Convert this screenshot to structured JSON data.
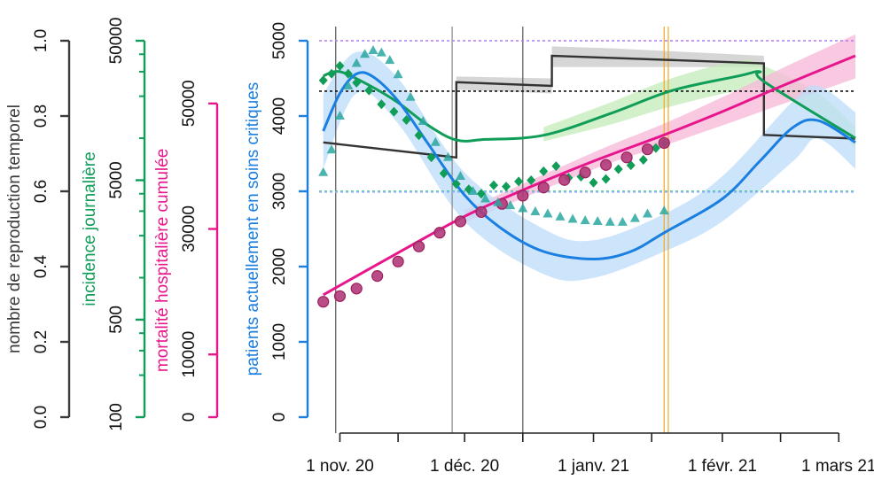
{
  "chart_data": {
    "type": "line",
    "x_ticks": [
      "1 nov. 20",
      "1 déc. 20",
      "1 janv. 21",
      "1 févr. 21",
      "1 mars 21"
    ],
    "x_range": [
      "2020-10-27",
      "2021-03-05"
    ],
    "axes": [
      {
        "key": "r",
        "label": "nombre de reproduction temporel",
        "color": "#3a3a3a",
        "scale": "linear",
        "range": [
          0,
          1.0
        ],
        "ticks": [
          "0.0",
          "0.2",
          "0.4",
          "0.6",
          "0.8",
          "1.0"
        ]
      },
      {
        "key": "inc",
        "label": "incidence journalière",
        "color": "#0f9d58",
        "scale": "log",
        "range": [
          100,
          50000
        ],
        "ticks": [
          "100",
          "500",
          "5000",
          "50000"
        ]
      },
      {
        "key": "mort",
        "label": "mortalité hospitalière cumulée",
        "color": "#e8168c",
        "scale": "linear",
        "range": [
          0,
          60000
        ],
        "ticks": [
          "0",
          "10000",
          "30000",
          "50000"
        ]
      },
      {
        "key": "icu",
        "label": "patients actuellement en soins critiques",
        "color": "#1a7fe0",
        "scale": "linear",
        "range": [
          0,
          5000
        ],
        "ticks": [
          "0",
          "1000",
          "2000",
          "3000",
          "4000",
          "5000"
        ]
      }
    ],
    "vertical_lines": [
      {
        "date": "2020-10-31",
        "color": "#555555"
      },
      {
        "date": "2020-11-28",
        "color": "#888888"
      },
      {
        "date": "2020-12-15",
        "color": "#555555"
      },
      {
        "date": "2021-01-18",
        "color": "#f5a623"
      },
      {
        "date": "2021-01-19",
        "color": "#f5a623"
      }
    ],
    "horizontal_lines": [
      {
        "axis": "icu",
        "value": 5000,
        "color": "#b07cf0"
      },
      {
        "axis": "icu",
        "value": 4330,
        "color": "#111111"
      },
      {
        "axis": "icu",
        "value": 3000,
        "color": "#2ec27e"
      },
      {
        "axis": "icu",
        "value": 2990,
        "color": "#8ab4f8"
      }
    ],
    "series": [
      {
        "axis": "r",
        "kind": "step",
        "color": "#333333",
        "band": "#c8c8c8",
        "points": [
          [
            "2020-10-28",
            0.73
          ],
          [
            "2020-11-29",
            0.69
          ],
          [
            "2020-11-29",
            0.89
          ],
          [
            "2020-12-22",
            0.88
          ],
          [
            "2020-12-22",
            0.96
          ],
          [
            "2021-02-11",
            0.94
          ],
          [
            "2021-02-11",
            0.75
          ],
          [
            "2021-03-05",
            0.74
          ]
        ],
        "band_points": [
          [
            "2020-11-29",
            0.87,
            0.905
          ],
          [
            "2020-12-22",
            0.86,
            0.9
          ],
          [
            "2020-12-22",
            0.93,
            0.985
          ],
          [
            "2021-01-05",
            0.93,
            0.98
          ],
          [
            "2021-02-11",
            0.93,
            0.96
          ]
        ]
      },
      {
        "axis": "inc",
        "kind": "smooth",
        "color": "#0f9d58",
        "band": "#c3ecb9",
        "points": [
          [
            "2020-10-28",
            28000
          ],
          [
            "2020-11-01",
            30000
          ],
          [
            "2020-11-08",
            24000
          ],
          [
            "2020-11-15",
            18000
          ],
          [
            "2020-11-22",
            12500
          ],
          [
            "2020-11-29",
            9700
          ],
          [
            "2020-12-06",
            9800
          ],
          [
            "2020-12-20",
            10500
          ],
          [
            "2021-01-05",
            15000
          ],
          [
            "2021-01-20",
            22000
          ],
          [
            "2021-02-05",
            28000
          ],
          [
            "2021-02-10",
            30000
          ],
          [
            "2021-02-11",
            25500
          ],
          [
            "2021-03-05",
            10000
          ]
        ],
        "band_points": [
          [
            "2020-12-20",
            9500,
            12000
          ],
          [
            "2021-01-05",
            12500,
            18000
          ],
          [
            "2021-01-20",
            17000,
            27000
          ],
          [
            "2021-02-05",
            22000,
            36000
          ],
          [
            "2021-02-11",
            22000,
            33000
          ],
          [
            "2021-02-24",
            15000,
            21000
          ],
          [
            "2021-03-05",
            8500,
            12000
          ]
        ]
      },
      {
        "axis": "inc",
        "kind": "diamonds",
        "color": "#0f9d58",
        "points": [
          [
            "2020-10-28",
            26000
          ],
          [
            "2020-10-30",
            29000
          ],
          [
            "2020-11-01",
            33000
          ],
          [
            "2020-11-03",
            29000
          ],
          [
            "2020-11-05",
            25000
          ],
          [
            "2020-11-08",
            22000
          ],
          [
            "2020-11-11",
            17500
          ],
          [
            "2020-11-14",
            15500
          ],
          [
            "2020-11-17",
            13500
          ],
          [
            "2020-11-20",
            10500
          ],
          [
            "2020-11-23",
            7300
          ],
          [
            "2020-11-26",
            5600
          ],
          [
            "2020-11-29",
            4700
          ],
          [
            "2020-12-02",
            4300
          ],
          [
            "2020-12-05",
            4000
          ],
          [
            "2020-12-08",
            4600
          ],
          [
            "2020-12-11",
            4500
          ],
          [
            "2020-12-14",
            4900
          ],
          [
            "2020-12-17",
            5000
          ],
          [
            "2020-12-20",
            5800
          ],
          [
            "2020-12-23",
            6300
          ],
          [
            "2020-12-26",
            5200
          ],
          [
            "2020-12-29",
            5300
          ],
          [
            "2021-01-01",
            4800
          ],
          [
            "2021-01-04",
            5100
          ],
          [
            "2021-01-07",
            6000
          ],
          [
            "2021-01-10",
            6400
          ],
          [
            "2021-01-13",
            7000
          ],
          [
            "2021-01-16",
            8500
          ],
          [
            "2021-01-18",
            9200
          ]
        ]
      },
      {
        "axis": "mort",
        "kind": "smooth",
        "color": "#e8168c",
        "band": "#f7b7d8",
        "points": [
          [
            "2020-10-28",
            19500
          ],
          [
            "2020-11-15",
            26200
          ],
          [
            "2020-12-01",
            32000
          ],
          [
            "2020-12-15",
            36200
          ],
          [
            "2021-01-01",
            40800
          ],
          [
            "2021-01-18",
            45000
          ],
          [
            "2021-02-01",
            48700
          ],
          [
            "2021-02-15",
            52700
          ],
          [
            "2021-03-05",
            57600
          ]
        ],
        "band_points": [
          [
            "2020-12-01",
            31000,
            33000
          ],
          [
            "2021-01-01",
            39500,
            42200
          ],
          [
            "2021-01-18",
            43300,
            46800
          ],
          [
            "2021-02-01",
            46500,
            51000
          ],
          [
            "2021-02-15",
            49800,
            55500
          ],
          [
            "2021-03-05",
            54000,
            61000
          ]
        ]
      },
      {
        "axis": "mort",
        "kind": "circles",
        "color": "#9c1f5c",
        "points": [
          [
            "2020-10-28",
            18400
          ],
          [
            "2020-11-01",
            19300
          ],
          [
            "2020-11-05",
            20500
          ],
          [
            "2020-11-10",
            22500
          ],
          [
            "2020-11-15",
            24800
          ],
          [
            "2020-11-20",
            27200
          ],
          [
            "2020-11-25",
            29400
          ],
          [
            "2020-11-30",
            31200
          ],
          [
            "2020-12-05",
            32700
          ],
          [
            "2020-12-10",
            34000
          ],
          [
            "2020-12-15",
            35300
          ],
          [
            "2020-12-20",
            36600
          ],
          [
            "2020-12-25",
            37800
          ],
          [
            "2020-12-30",
            39000
          ],
          [
            "2021-01-04",
            40200
          ],
          [
            "2021-01-09",
            41400
          ],
          [
            "2021-01-14",
            42700
          ],
          [
            "2021-01-18",
            43700
          ]
        ]
      },
      {
        "axis": "icu",
        "kind": "smooth",
        "color": "#1a7fe0",
        "band": "#bcdcfa",
        "points": [
          [
            "2020-10-28",
            3800
          ],
          [
            "2020-11-01",
            4300
          ],
          [
            "2020-11-05",
            4560
          ],
          [
            "2020-11-09",
            4520
          ],
          [
            "2020-11-15",
            4200
          ],
          [
            "2020-11-22",
            3650
          ],
          [
            "2020-12-01",
            2950
          ],
          [
            "2020-12-10",
            2500
          ],
          [
            "2020-12-20",
            2200
          ],
          [
            "2021-01-01",
            2100
          ],
          [
            "2021-01-10",
            2200
          ],
          [
            "2021-01-18",
            2450
          ],
          [
            "2021-02-01",
            2900
          ],
          [
            "2021-02-10",
            3400
          ],
          [
            "2021-02-18",
            3850
          ],
          [
            "2021-02-24",
            3940
          ],
          [
            "2021-03-05",
            3650
          ]
        ],
        "band_points": [
          [
            "2020-10-28",
            3300,
            4300
          ],
          [
            "2020-11-05",
            4300,
            4850
          ],
          [
            "2020-11-15",
            3900,
            4500
          ],
          [
            "2020-12-01",
            2600,
            3250
          ],
          [
            "2020-12-20",
            1900,
            2500
          ],
          [
            "2021-01-01",
            1850,
            2350
          ],
          [
            "2021-01-18",
            2200,
            2700
          ],
          [
            "2021-02-01",
            2600,
            3200
          ],
          [
            "2021-02-18",
            3400,
            4200
          ],
          [
            "2021-02-24",
            3700,
            4400
          ],
          [
            "2021-03-05",
            3300,
            4050
          ]
        ]
      },
      {
        "axis": "icu",
        "kind": "triangles",
        "color": "#2aa7a0",
        "points": [
          [
            "2020-10-28",
            3250
          ],
          [
            "2020-10-30",
            3550
          ],
          [
            "2020-11-01",
            4000
          ],
          [
            "2020-11-03",
            4400
          ],
          [
            "2020-11-05",
            4700
          ],
          [
            "2020-11-07",
            4820
          ],
          [
            "2020-11-09",
            4870
          ],
          [
            "2020-11-11",
            4840
          ],
          [
            "2020-11-13",
            4740
          ],
          [
            "2020-11-15",
            4550
          ],
          [
            "2020-11-18",
            4250
          ],
          [
            "2020-11-21",
            3930
          ],
          [
            "2020-11-24",
            3650
          ],
          [
            "2020-11-27",
            3450
          ],
          [
            "2020-11-30",
            3200
          ],
          [
            "2020-12-03",
            3000
          ],
          [
            "2020-12-06",
            2900
          ],
          [
            "2020-12-09",
            2850
          ],
          [
            "2020-12-12",
            2810
          ],
          [
            "2020-12-15",
            2770
          ],
          [
            "2020-12-18",
            2730
          ],
          [
            "2020-12-21",
            2700
          ],
          [
            "2020-12-24",
            2660
          ],
          [
            "2020-12-27",
            2630
          ],
          [
            "2020-12-30",
            2610
          ],
          [
            "2021-01-02",
            2600
          ],
          [
            "2021-01-05",
            2590
          ],
          [
            "2021-01-08",
            2590
          ],
          [
            "2021-01-11",
            2640
          ],
          [
            "2021-01-14",
            2700
          ],
          [
            "2021-01-18",
            2740
          ]
        ]
      }
    ]
  }
}
